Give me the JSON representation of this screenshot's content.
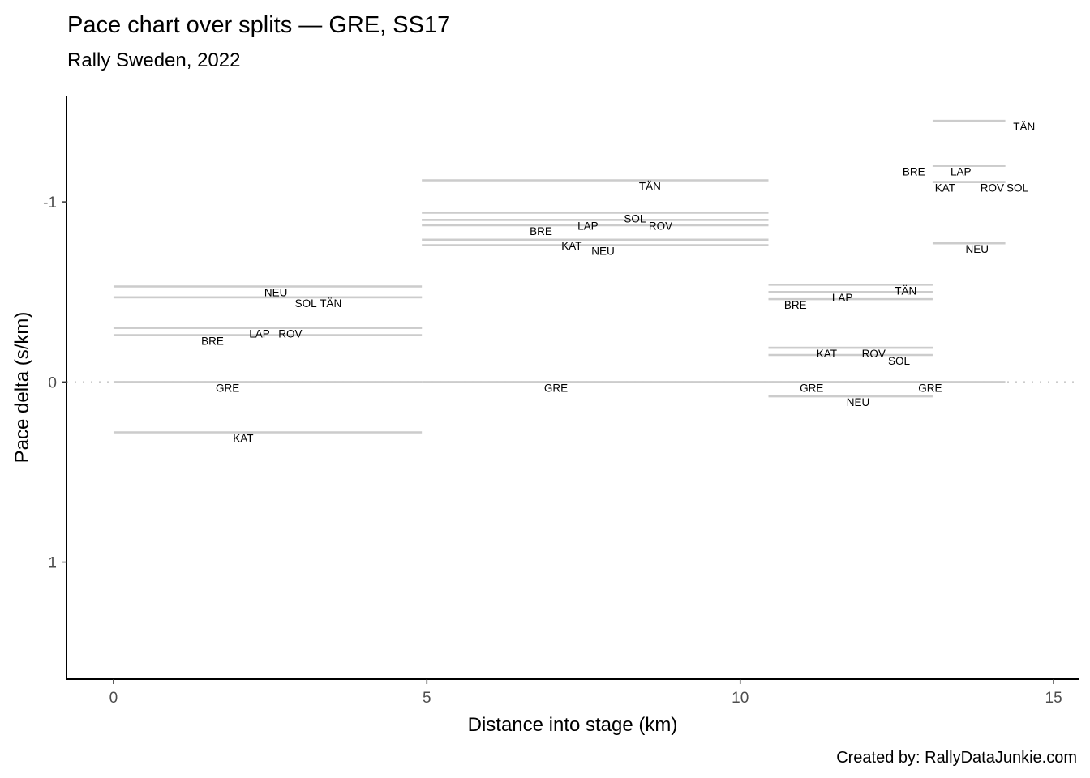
{
  "chart_data": {
    "type": "line",
    "title": "Pace chart over splits — GRE, SS17",
    "subtitle": "Rally Sweden, 2022",
    "xlabel": "Distance into stage (km)",
    "ylabel": "Pace delta (s/km)",
    "caption": "Created by: RallyDataJunkie.com",
    "xlim": [
      -0.75,
      15.4
    ],
    "ylim": [
      -1.59,
      1.65
    ],
    "y_reversed": true,
    "x_ticks": [
      0,
      5,
      10,
      15
    ],
    "x_tick_labels": [
      "0",
      "5",
      "10",
      "15"
    ],
    "y_ticks": [
      -1,
      0,
      1
    ],
    "y_tick_labels": [
      "-1",
      "0",
      "1"
    ],
    "reference_line": 0,
    "splits": [
      {
        "start": 0,
        "end": 4.92,
        "drivers": [
          {
            "name": "NEU",
            "value": -0.53,
            "label_km": 2.59
          },
          {
            "name": "SOL",
            "value": -0.47,
            "label_km": 3.07
          },
          {
            "name": "TÄN",
            "value": -0.47,
            "label_km": 3.32
          },
          {
            "name": "LAP",
            "value": -0.3,
            "label_km": 2.33
          },
          {
            "name": "ROV",
            "value": -0.3,
            "label_km": 2.82
          },
          {
            "name": "BRE",
            "value": -0.26,
            "label_km": 1.58
          },
          {
            "name": "GRE",
            "value": 0,
            "label_km": 1.82
          },
          {
            "name": "KAT",
            "value": 0.28,
            "label_km": 2.07
          }
        ]
      },
      {
        "start": 4.92,
        "end": 10.45,
        "drivers": [
          {
            "name": "TÄN",
            "value": -1.12,
            "label_km": 8.56
          },
          {
            "name": "SOL",
            "value": -0.94,
            "label_km": 8.32
          },
          {
            "name": "LAP",
            "value": -0.9,
            "label_km": 7.57
          },
          {
            "name": "ROV",
            "value": -0.9,
            "label_km": 8.06
          },
          {
            "name": "BRE",
            "value": -0.87,
            "label_km": 6.82
          },
          {
            "name": "KAT",
            "value": -0.79,
            "label_km": 7.31
          },
          {
            "name": "NEU",
            "value": -0.76,
            "label_km": 7.81
          },
          {
            "name": "GRE",
            "value": 0,
            "label_km": 7.06
          }
        ]
      },
      {
        "start": 10.45,
        "end": 13.07,
        "drivers": [
          {
            "name": "TÄN",
            "value": -0.54,
            "label_km": 12.64
          },
          {
            "name": "LAP",
            "value": -0.5,
            "label_km": 11.63
          },
          {
            "name": "BRE",
            "value": -0.46,
            "label_km": 10.88
          },
          {
            "name": "KAT",
            "value": -0.19,
            "label_km": 11.38
          },
          {
            "name": "ROV",
            "value": -0.19,
            "label_km": 12.13
          },
          {
            "name": "SOL",
            "value": -0.15,
            "label_km": 12.38
          },
          {
            "name": "GRE",
            "value": 0,
            "label_km": 11.14
          },
          {
            "name": "NEU",
            "value": 0.08,
            "label_km": 11.88
          }
        ]
      },
      {
        "start": 13.07,
        "end": 14.23,
        "drivers": [
          {
            "name": "TÄN",
            "value": -1.45,
            "label_km": 14.53
          },
          {
            "name": "BRE",
            "value": -1.2,
            "label_km": 12.77
          },
          {
            "name": "LAP",
            "value": -1.2,
            "label_km": 13.52
          },
          {
            "name": "KAT",
            "value": -1.11,
            "label_km": 13.27
          },
          {
            "name": "ROV",
            "value": -1.11,
            "label_km": 14.02
          },
          {
            "name": "SOL",
            "value": -1.11,
            "label_km": 14.27
          },
          {
            "name": "NEU",
            "value": -0.77,
            "label_km": 13.78
          },
          {
            "name": "GRE",
            "value": 0,
            "label_km": 13.03
          }
        ]
      }
    ],
    "colors": {
      "segment": "#cccccc",
      "axis": "#000000",
      "text": "#000000",
      "tick_text": "#4d4d4d"
    }
  }
}
